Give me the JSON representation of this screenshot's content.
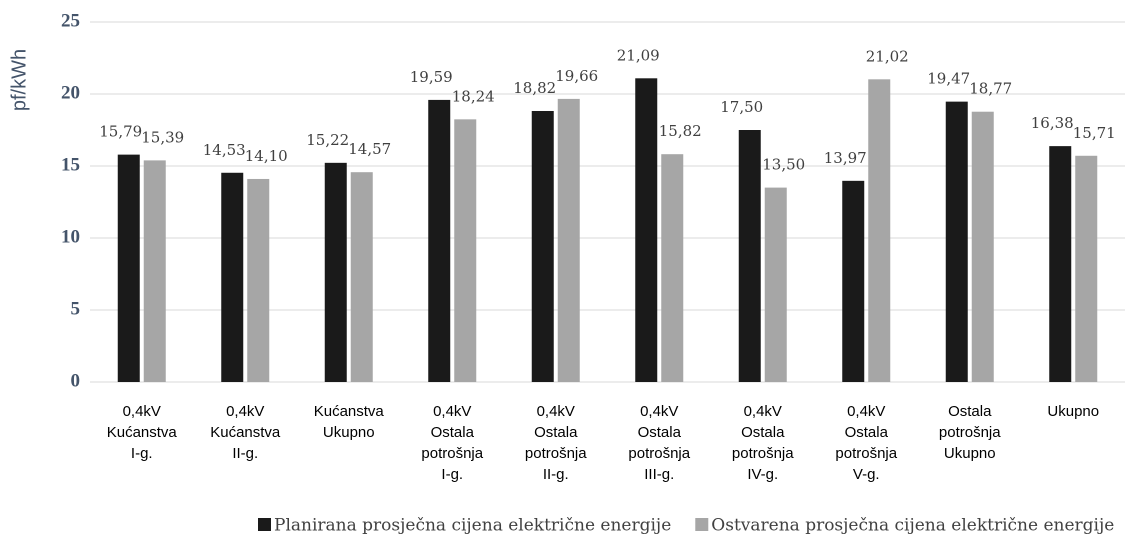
{
  "chart_data": {
    "type": "bar",
    "y_label": "pf/kWh",
    "categories": [
      [
        "0,4kV",
        "Kućanstva",
        "I-g."
      ],
      [
        "0,4kV",
        "Kućanstva",
        "II-g."
      ],
      [
        "Kućanstva",
        "Ukupno"
      ],
      [
        "0,4kV",
        "Ostala",
        "potrošnja",
        "I-g."
      ],
      [
        "0,4kV",
        "Ostala",
        "potrošnja",
        "II-g."
      ],
      [
        "0,4kV",
        "Ostala",
        "potrošnja",
        "III-g."
      ],
      [
        "0,4kV",
        "Ostala",
        "potrošnja",
        "IV-g."
      ],
      [
        "0,4kV",
        "Ostala",
        "potrošnja",
        "V-g."
      ],
      [
        "Ostala",
        "potrošnja",
        "Ukupno"
      ],
      [
        "Ukupno"
      ]
    ],
    "series": [
      {
        "name": "Planirana prosječna cijena električne energije",
        "color": "#1a1a1a",
        "values": [
          15.79,
          14.53,
          15.22,
          19.59,
          18.82,
          21.09,
          17.5,
          13.97,
          19.47,
          16.38
        ],
        "value_labels": [
          "15,79",
          "14,53",
          "15,22",
          "19,59",
          "18,82",
          "21,09",
          "17,50",
          "13,97",
          "19,47",
          "16,38"
        ]
      },
      {
        "name": "Ostvarena prosječna cijena električne energije",
        "color": "#a6a6a6",
        "values": [
          15.39,
          14.1,
          14.57,
          18.24,
          19.66,
          15.82,
          13.5,
          21.02,
          18.77,
          15.71
        ],
        "value_labels": [
          "15,39",
          "14,10",
          "14,57",
          "18,24",
          "19,66",
          "15,82",
          "13,50",
          "21,02",
          "18,77",
          "15,71"
        ]
      }
    ],
    "ylim": [
      0,
      25
    ],
    "yticks": [
      0,
      5,
      10,
      15,
      20,
      25
    ],
    "grid": true,
    "legend": "bottom"
  }
}
